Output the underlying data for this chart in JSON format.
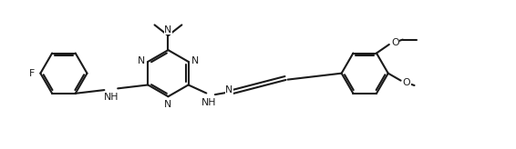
{
  "bg": "#ffffff",
  "lc": "#1a1a1a",
  "lw": 1.5,
  "fs": 7.8,
  "figsize": [
    5.66,
    1.64
  ],
  "dpi": 100,
  "r_ring": 0.48,
  "xlim": [
    -0.3,
    10.3
  ],
  "ylim": [
    0.1,
    2.85
  ]
}
